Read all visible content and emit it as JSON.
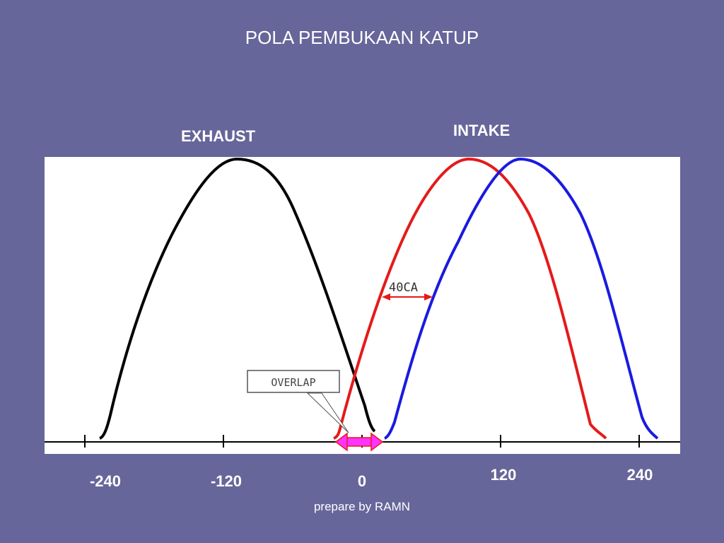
{
  "slide": {
    "title": "POLA PEMBUKAAN KATUP",
    "footer": "prepare by RAMN"
  },
  "labels": {
    "exhaust": "EXHAUST",
    "intake": "INTAKE",
    "overlap": "OVERLAP",
    "shift": "40CA"
  },
  "axis": {
    "ticks": [
      "-240",
      "-120",
      "0",
      "120",
      "240"
    ]
  },
  "colors": {
    "background": "#67669a",
    "exhaust_curve": "#000000",
    "intake_curve_red": "#e51a1a",
    "intake_curve_blue": "#1a1ae0",
    "overlap_arrow": "#ff33ff",
    "shift_arrow": "#e51a1a"
  }
}
